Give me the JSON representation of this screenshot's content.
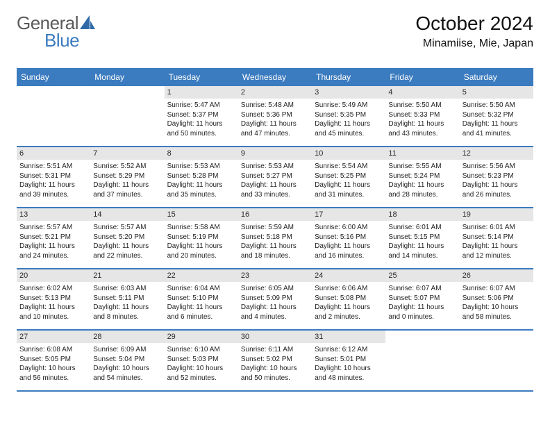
{
  "brand": {
    "part1": "General",
    "part2": "Blue"
  },
  "title": "October 2024",
  "location": "Minamiise, Mie, Japan",
  "colors": {
    "header_bg": "#3b7bbf",
    "header_text": "#ffffff",
    "datebar_bg": "#e6e6e6",
    "rule": "#3b7bbf",
    "text": "#222222",
    "page_bg": "#ffffff",
    "logo_gray": "#5a5a5a",
    "logo_blue": "#3b7bbf"
  },
  "daynames": [
    "Sunday",
    "Monday",
    "Tuesday",
    "Wednesday",
    "Thursday",
    "Friday",
    "Saturday"
  ],
  "weeks": [
    [
      {
        "empty": true
      },
      {
        "empty": true
      },
      {
        "date": "1",
        "sunrise": "5:47 AM",
        "sunset": "5:37 PM",
        "daylight": "11 hours and 50 minutes."
      },
      {
        "date": "2",
        "sunrise": "5:48 AM",
        "sunset": "5:36 PM",
        "daylight": "11 hours and 47 minutes."
      },
      {
        "date": "3",
        "sunrise": "5:49 AM",
        "sunset": "5:35 PM",
        "daylight": "11 hours and 45 minutes."
      },
      {
        "date": "4",
        "sunrise": "5:50 AM",
        "sunset": "5:33 PM",
        "daylight": "11 hours and 43 minutes."
      },
      {
        "date": "5",
        "sunrise": "5:50 AM",
        "sunset": "5:32 PM",
        "daylight": "11 hours and 41 minutes."
      }
    ],
    [
      {
        "date": "6",
        "sunrise": "5:51 AM",
        "sunset": "5:31 PM",
        "daylight": "11 hours and 39 minutes."
      },
      {
        "date": "7",
        "sunrise": "5:52 AM",
        "sunset": "5:29 PM",
        "daylight": "11 hours and 37 minutes."
      },
      {
        "date": "8",
        "sunrise": "5:53 AM",
        "sunset": "5:28 PM",
        "daylight": "11 hours and 35 minutes."
      },
      {
        "date": "9",
        "sunrise": "5:53 AM",
        "sunset": "5:27 PM",
        "daylight": "11 hours and 33 minutes."
      },
      {
        "date": "10",
        "sunrise": "5:54 AM",
        "sunset": "5:25 PM",
        "daylight": "11 hours and 31 minutes."
      },
      {
        "date": "11",
        "sunrise": "5:55 AM",
        "sunset": "5:24 PM",
        "daylight": "11 hours and 28 minutes."
      },
      {
        "date": "12",
        "sunrise": "5:56 AM",
        "sunset": "5:23 PM",
        "daylight": "11 hours and 26 minutes."
      }
    ],
    [
      {
        "date": "13",
        "sunrise": "5:57 AM",
        "sunset": "5:21 PM",
        "daylight": "11 hours and 24 minutes."
      },
      {
        "date": "14",
        "sunrise": "5:57 AM",
        "sunset": "5:20 PM",
        "daylight": "11 hours and 22 minutes."
      },
      {
        "date": "15",
        "sunrise": "5:58 AM",
        "sunset": "5:19 PM",
        "daylight": "11 hours and 20 minutes."
      },
      {
        "date": "16",
        "sunrise": "5:59 AM",
        "sunset": "5:18 PM",
        "daylight": "11 hours and 18 minutes."
      },
      {
        "date": "17",
        "sunrise": "6:00 AM",
        "sunset": "5:16 PM",
        "daylight": "11 hours and 16 minutes."
      },
      {
        "date": "18",
        "sunrise": "6:01 AM",
        "sunset": "5:15 PM",
        "daylight": "11 hours and 14 minutes."
      },
      {
        "date": "19",
        "sunrise": "6:01 AM",
        "sunset": "5:14 PM",
        "daylight": "11 hours and 12 minutes."
      }
    ],
    [
      {
        "date": "20",
        "sunrise": "6:02 AM",
        "sunset": "5:13 PM",
        "daylight": "11 hours and 10 minutes."
      },
      {
        "date": "21",
        "sunrise": "6:03 AM",
        "sunset": "5:11 PM",
        "daylight": "11 hours and 8 minutes."
      },
      {
        "date": "22",
        "sunrise": "6:04 AM",
        "sunset": "5:10 PM",
        "daylight": "11 hours and 6 minutes."
      },
      {
        "date": "23",
        "sunrise": "6:05 AM",
        "sunset": "5:09 PM",
        "daylight": "11 hours and 4 minutes."
      },
      {
        "date": "24",
        "sunrise": "6:06 AM",
        "sunset": "5:08 PM",
        "daylight": "11 hours and 2 minutes."
      },
      {
        "date": "25",
        "sunrise": "6:07 AM",
        "sunset": "5:07 PM",
        "daylight": "11 hours and 0 minutes."
      },
      {
        "date": "26",
        "sunrise": "6:07 AM",
        "sunset": "5:06 PM",
        "daylight": "10 hours and 58 minutes."
      }
    ],
    [
      {
        "date": "27",
        "sunrise": "6:08 AM",
        "sunset": "5:05 PM",
        "daylight": "10 hours and 56 minutes."
      },
      {
        "date": "28",
        "sunrise": "6:09 AM",
        "sunset": "5:04 PM",
        "daylight": "10 hours and 54 minutes."
      },
      {
        "date": "29",
        "sunrise": "6:10 AM",
        "sunset": "5:03 PM",
        "daylight": "10 hours and 52 minutes."
      },
      {
        "date": "30",
        "sunrise": "6:11 AM",
        "sunset": "5:02 PM",
        "daylight": "10 hours and 50 minutes."
      },
      {
        "date": "31",
        "sunrise": "6:12 AM",
        "sunset": "5:01 PM",
        "daylight": "10 hours and 48 minutes."
      },
      {
        "empty": true
      },
      {
        "empty": true
      }
    ]
  ],
  "labels": {
    "sunrise": "Sunrise: ",
    "sunset": "Sunset: ",
    "daylight": "Daylight: "
  }
}
